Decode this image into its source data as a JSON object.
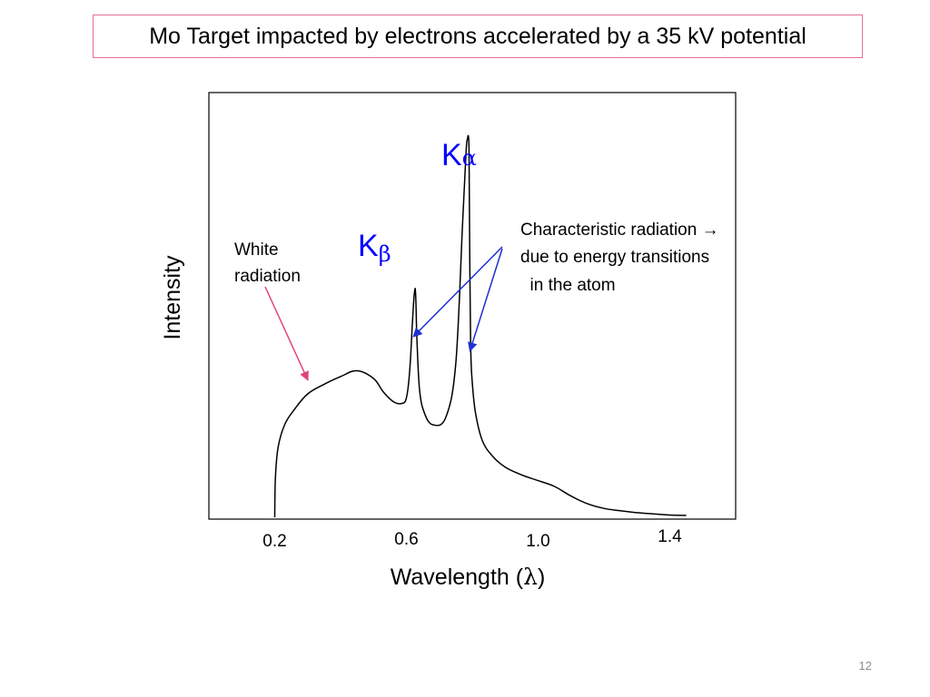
{
  "slide": {
    "title": "Mo Target impacted by electrons accelerated by a 35 kV potential",
    "page_number": "12"
  },
  "chart_data": {
    "type": "line",
    "title": "",
    "xlabel_prefix": "Wavelength (",
    "xlabel_symbol": "λ",
    "xlabel_suffix": ")",
    "ylabel": "Intensity",
    "xticks": [
      {
        "value": 0.2,
        "label": "0.2"
      },
      {
        "value": 0.6,
        "label": "0.6"
      },
      {
        "value": 1.0,
        "label": "1.0"
      },
      {
        "value": 1.4,
        "label": "1.4"
      }
    ],
    "xlim": [
      0.0,
      1.6
    ],
    "ylim": [
      0,
      100
    ],
    "grid": false,
    "series": [
      {
        "x": [
          0.2,
          0.202,
          0.21,
          0.23,
          0.26,
          0.3,
          0.35,
          0.4,
          0.45,
          0.5,
          0.53,
          0.56,
          0.585,
          0.6,
          0.61,
          0.618,
          0.624,
          0.628,
          0.632,
          0.64,
          0.655,
          0.68,
          0.72,
          0.75,
          0.77,
          0.78,
          0.785,
          0.79,
          0.792,
          0.795,
          0.8,
          0.81,
          0.83,
          0.86,
          0.9,
          0.95,
          1.0,
          1.05,
          1.1,
          1.15,
          1.2,
          1.25,
          1.3,
          1.35,
          1.4,
          1.45
        ],
        "y": [
          0,
          10,
          18,
          24,
          28,
          32,
          34.5,
          36.5,
          38,
          36,
          32.5,
          30,
          29.5,
          31,
          38,
          50,
          58,
          58,
          46,
          33,
          27,
          24,
          26,
          40,
          75,
          93,
          98,
          96,
          72,
          45,
          35,
          27,
          20,
          16,
          13,
          11,
          9.5,
          8,
          5.5,
          3.5,
          2.3,
          1.7,
          1.2,
          0.9,
          0.6,
          0.5
        ]
      }
    ],
    "annotations": [
      {
        "name": "k-alpha",
        "letter": "K",
        "subscript": "α",
        "color": "#0000ff"
      },
      {
        "name": "k-beta",
        "letter": "K",
        "subscript": "β",
        "color": "#0000ff"
      },
      {
        "name": "white-radiation",
        "lines": [
          "White",
          "radiation"
        ],
        "arrow_color": "#e0457a",
        "target_x": 0.4,
        "target_y": 36.5
      },
      {
        "name": "characteristic-radiation",
        "lines": [
          "Characteristic radiation →",
          "due to energy transitions",
          "  in the atom"
        ],
        "arrow_color": "#1f2fd0",
        "targets": [
          {
            "x": 0.61,
            "y": 48
          },
          {
            "x": 0.79,
            "y": 45
          }
        ]
      }
    ]
  }
}
